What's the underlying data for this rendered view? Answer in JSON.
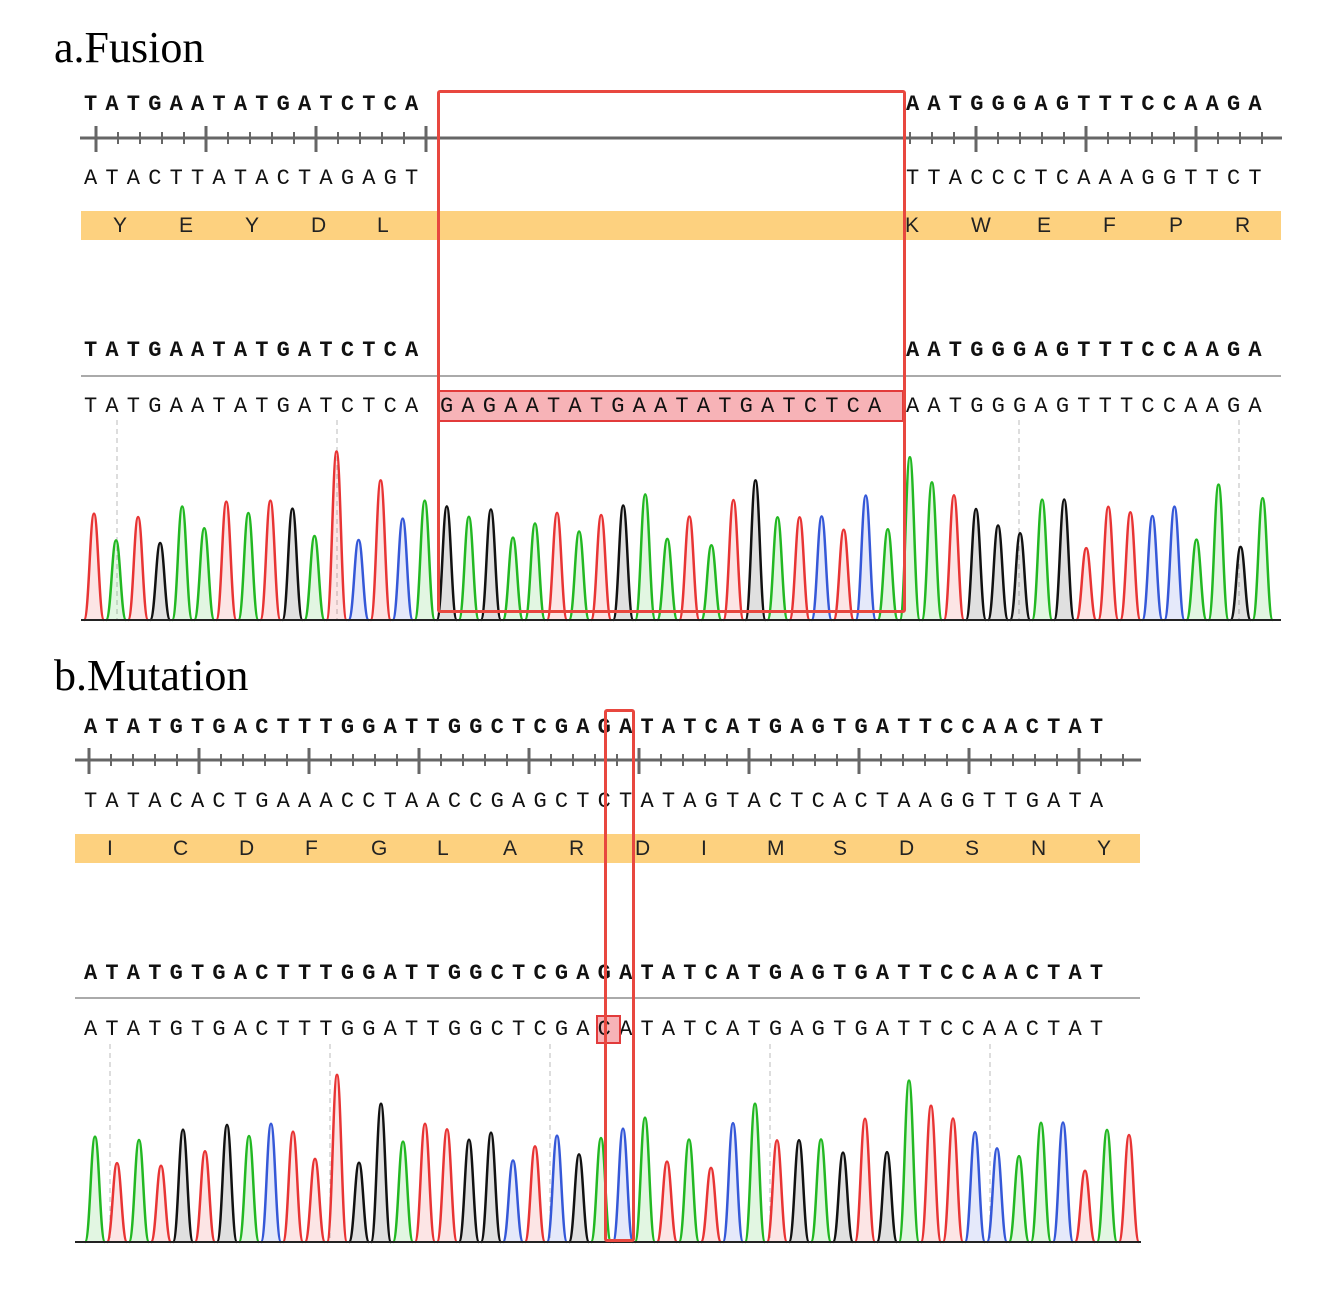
{
  "colors": {
    "A": "#22b822",
    "C": "#3558d8",
    "G": "#111111",
    "T": "#e83434",
    "aa_bar": "#fdd17f",
    "highlight_box": "#e8473f"
  },
  "fusion": {
    "title": "a.Fusion",
    "ref_left": "TATGAATATGATCTCA",
    "ref_right": "AATGGGAGTTTCCAAGA",
    "comp_left": "ATACTTATACTAGAGT",
    "comp_right": "TTACCCTCAAAGGTTCT",
    "aa_left": [
      "Y",
      "E",
      "Y",
      "D",
      "L"
    ],
    "aa_right": [
      "K",
      "W",
      "E",
      "F",
      "P",
      "R"
    ],
    "read_ref_left": "TATGAATATGATCTCA",
    "read_ref_right": "AATGGGAGTTTCCAAGA",
    "read_left": "TATGAATATGATCTCA",
    "read_insert": "GAGAATATGAATATGATCTCA",
    "read_right": "AATGGGAGTTTCCAAGA"
  },
  "mutation": {
    "title": "b.Mutation",
    "ref_before": "ATATGTGACTTTGGATTGGCTCGA",
    "ref_site": "G",
    "ref_after": "ATATCATGAGTGATTCCAACTAT",
    "comp": "TATACACTGAAACCTAACCGAGCTCTATAGTACTCACTAAGGTTGATA",
    "aa": [
      "I",
      "C",
      "D",
      "F",
      "G",
      "L",
      "A",
      "R",
      "D",
      "I",
      "M",
      "S",
      "D",
      "S",
      "N",
      "Y"
    ],
    "read_before": "ATATGTGACTTTGGATTGGCTCGA",
    "read_site": "C",
    "read_after": "ATATCATGAGTGATTCCAACTAT"
  }
}
